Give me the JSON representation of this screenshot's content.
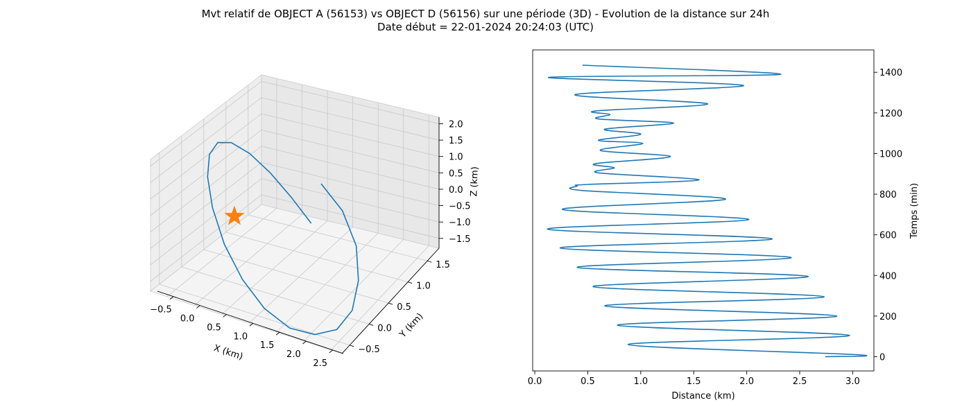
{
  "figure": {
    "title_line1": "Mvt relatif de OBJECT A (56153) vs OBJECT D (56156) sur une période (3D) - Evolution de la distance sur 24h",
    "title_line2": "Date début = 22-01-2024 20:24:03 (UTC)"
  },
  "chart_data": [
    {
      "type": "line3d",
      "title": "",
      "xlabel": "X (km)",
      "ylabel": "Y (km)",
      "zlabel": "Z (km)",
      "xlim": [
        -0.8,
        2.7
      ],
      "ylim": [
        -0.7,
        1.8
      ],
      "zlim": [
        -1.8,
        2.2
      ],
      "xticks": [
        "−0.5",
        "0.0",
        "0.5",
        "1.0",
        "1.5",
        "2.0",
        "2.5"
      ],
      "yticks": [
        "−0.5",
        "0.0",
        "0.5",
        "1.0",
        "1.5"
      ],
      "zticks": [
        "−1.5",
        "−1.0",
        "−0.5",
        "0.0",
        "0.5",
        "1.0",
        "1.5",
        "2.0"
      ],
      "grid": true,
      "line_color": "#1f77b4",
      "marker": {
        "shape": "star",
        "color": "#ff7f0e",
        "x": 0.0,
        "y": 0.0,
        "z": 0.0
      },
      "series": [
        {
          "x": [
            1.0,
            1.36,
            1.64,
            1.77,
            1.77,
            1.62,
            1.34,
            0.98,
            0.58,
            0.19,
            -0.16,
            -0.43,
            -0.59,
            -0.63,
            -0.55,
            -0.36,
            -0.08,
            0.25,
            0.59,
            0.91
          ],
          "y": [
            0.5,
            0.66,
            0.85,
            1.04,
            1.19,
            1.28,
            1.29,
            1.22,
            1.08,
            0.88,
            0.66,
            0.44,
            0.26,
            0.14,
            0.09,
            0.12,
            0.2,
            0.32,
            0.45,
            0.57
          ],
          "z": [
            2.0,
            1.62,
            0.95,
            0.18,
            -0.59,
            -1.21,
            -1.58,
            -1.74,
            -1.6,
            -1.22,
            -0.64,
            0.05,
            0.69,
            1.23,
            1.61,
            1.79,
            1.76,
            1.55,
            1.2,
            0.78
          ]
        }
      ]
    },
    {
      "type": "line",
      "title": "",
      "xlabel": "Distance (km)",
      "ylabel": "Temps (min)",
      "xlim": [
        -0.02,
        3.2
      ],
      "ylim": [
        -70,
        1510
      ],
      "xticks": [
        0.0,
        0.5,
        1.0,
        1.5,
        2.0,
        2.5,
        3.0
      ],
      "yticks": [
        0,
        200,
        400,
        600,
        800,
        1000,
        1200,
        1400
      ],
      "yaxis_position": "right",
      "line_color": "#1f77b4",
      "series": [
        {
          "x": [
            2.74,
            3.04,
            0.88,
            2.97,
            0.78,
            2.85,
            0.66,
            2.73,
            0.55,
            2.58,
            0.4,
            2.42,
            0.24,
            2.24,
            0.12,
            2.02,
            0.26,
            1.8,
            0.45,
            0.4,
            0.5,
            1.55,
            0.6,
            0.75,
            0.57,
            1.28,
            0.62,
            1.02,
            0.6,
            1.0,
            0.66,
            1.31,
            0.6,
            0.71,
            0.58,
            1.63,
            0.38,
            1.97,
            0.13,
            2.32,
            0.45
          ],
          "y": [
            0,
            10,
            60,
            105,
            155,
            200,
            250,
            295,
            345,
            395,
            440,
            488,
            535,
            580,
            628,
            675,
            725,
            775,
            818,
            840,
            848,
            870,
            905,
            930,
            950,
            985,
            1015,
            1050,
            1065,
            1095,
            1120,
            1150,
            1170,
            1192,
            1210,
            1245,
            1290,
            1335,
            1375,
            1390,
            1435
          ]
        }
      ]
    }
  ]
}
